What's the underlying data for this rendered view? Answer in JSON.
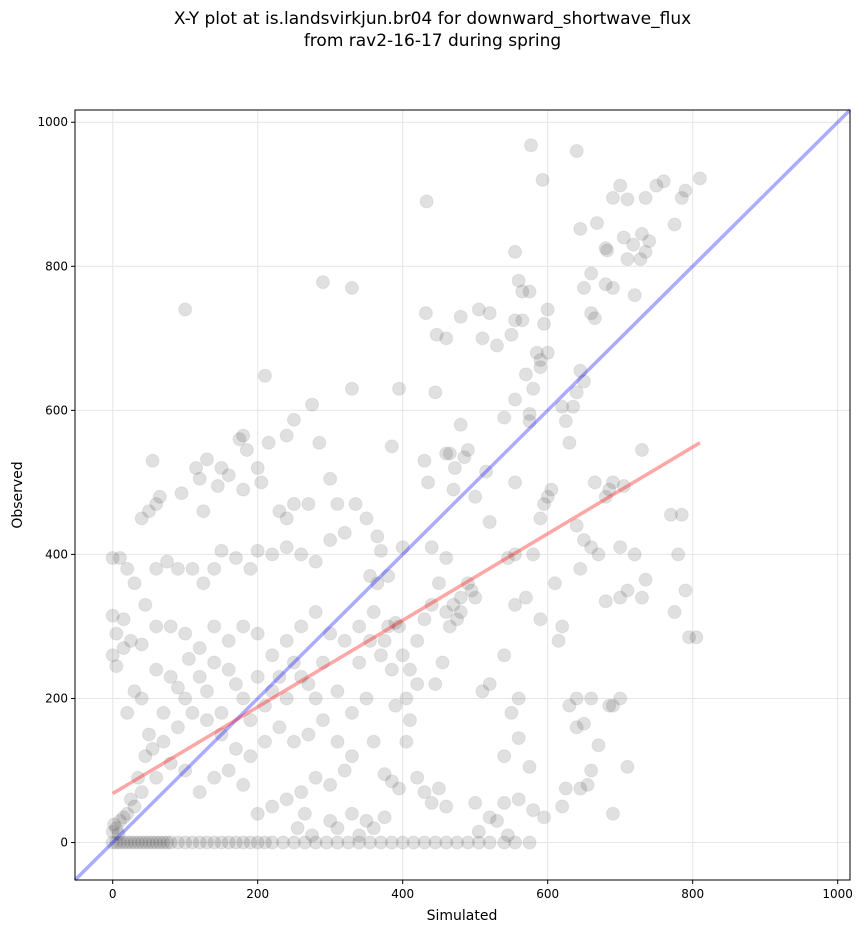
{
  "chart_data": {
    "type": "scatter",
    "title_line1": "X-Y plot at is.landsvirkjun.br04 for downward_shortwave_flux",
    "title_line2": "from rav2-16-17 during spring",
    "xlabel": "Simulated",
    "ylabel": "Observed",
    "xlim": [
      -52,
      1017
    ],
    "ylim": [
      -52,
      1017
    ],
    "xticks": [
      0,
      200,
      400,
      600,
      800,
      1000
    ],
    "yticks": [
      0,
      200,
      400,
      600,
      800,
      1000
    ],
    "grid": true,
    "colors": {
      "points": "#000000",
      "identity_line": "#0000ff",
      "regression_line": "#ff0000"
    },
    "identity_line": {
      "x": [
        -52,
        1017
      ],
      "y": [
        -52,
        1017
      ]
    },
    "regression_line": {
      "x": [
        0,
        810
      ],
      "y": [
        68,
        555
      ]
    },
    "points": [
      [
        577,
        968
      ],
      [
        640,
        960
      ],
      [
        593,
        920
      ],
      [
        433,
        890
      ],
      [
        810,
        922
      ],
      [
        790,
        905
      ],
      [
        785,
        895
      ],
      [
        760,
        918
      ],
      [
        750,
        912
      ],
      [
        735,
        895
      ],
      [
        700,
        912
      ],
      [
        690,
        895
      ],
      [
        710,
        893
      ],
      [
        645,
        852
      ],
      [
        668,
        860
      ],
      [
        680,
        825
      ],
      [
        682,
        822
      ],
      [
        705,
        840
      ],
      [
        718,
        830
      ],
      [
        730,
        845
      ],
      [
        735,
        820
      ],
      [
        728,
        810
      ],
      [
        710,
        810
      ],
      [
        775,
        858
      ],
      [
        740,
        835
      ],
      [
        720,
        760
      ],
      [
        660,
        790
      ],
      [
        650,
        770
      ],
      [
        660,
        735
      ],
      [
        665,
        728
      ],
      [
        680,
        775
      ],
      [
        690,
        770
      ],
      [
        555,
        820
      ],
      [
        560,
        780
      ],
      [
        565,
        765
      ],
      [
        595,
        720
      ],
      [
        600,
        740
      ],
      [
        575,
        765
      ],
      [
        520,
        735
      ],
      [
        480,
        730
      ],
      [
        432,
        735
      ],
      [
        447,
        705
      ],
      [
        460,
        700
      ],
      [
        330,
        770
      ],
      [
        290,
        778
      ],
      [
        100,
        740
      ],
      [
        510,
        700
      ],
      [
        530,
        690
      ],
      [
        555,
        725
      ],
      [
        550,
        705
      ],
      [
        565,
        725
      ],
      [
        585,
        680
      ],
      [
        600,
        680
      ],
      [
        590,
        670
      ],
      [
        555,
        615
      ],
      [
        590,
        660
      ],
      [
        570,
        650
      ],
      [
        580,
        630
      ],
      [
        575,
        595
      ],
      [
        575,
        585
      ],
      [
        620,
        605
      ],
      [
        625,
        585
      ],
      [
        630,
        555
      ],
      [
        640,
        625
      ],
      [
        645,
        655
      ],
      [
        635,
        605
      ],
      [
        650,
        640
      ],
      [
        540,
        590
      ],
      [
        480,
        580
      ],
      [
        490,
        545
      ],
      [
        485,
        535
      ],
      [
        472,
        520
      ],
      [
        470,
        490
      ],
      [
        460,
        540
      ],
      [
        430,
        530
      ],
      [
        465,
        540
      ],
      [
        385,
        550
      ],
      [
        330,
        630
      ],
      [
        395,
        630
      ],
      [
        505,
        740
      ],
      [
        445,
        625
      ],
      [
        435,
        500
      ],
      [
        440,
        410
      ],
      [
        460,
        395
      ],
      [
        515,
        515
      ],
      [
        500,
        480
      ],
      [
        520,
        445
      ],
      [
        545,
        395
      ],
      [
        555,
        400
      ],
      [
        555,
        500
      ],
      [
        600,
        480
      ],
      [
        605,
        490
      ],
      [
        595,
        470
      ],
      [
        590,
        450
      ],
      [
        640,
        440
      ],
      [
        650,
        420
      ],
      [
        645,
        380
      ],
      [
        660,
        410
      ],
      [
        665,
        500
      ],
      [
        685,
        490
      ],
      [
        680,
        480
      ],
      [
        690,
        500
      ],
      [
        705,
        495
      ],
      [
        700,
        410
      ],
      [
        700,
        340
      ],
      [
        710,
        350
      ],
      [
        720,
        400
      ],
      [
        730,
        340
      ],
      [
        735,
        365
      ],
      [
        730,
        545
      ],
      [
        770,
        455
      ],
      [
        785,
        455
      ],
      [
        780,
        400
      ],
      [
        790,
        350
      ],
      [
        795,
        285
      ],
      [
        805,
        285
      ],
      [
        775,
        320
      ],
      [
        670,
        400
      ],
      [
        680,
        335
      ],
      [
        690,
        190
      ],
      [
        685,
        190
      ],
      [
        670,
        135
      ],
      [
        660,
        200
      ],
      [
        650,
        165
      ],
      [
        640,
        160
      ],
      [
        630,
        190
      ],
      [
        640,
        200
      ],
      [
        625,
        75
      ],
      [
        645,
        75
      ],
      [
        655,
        80
      ],
      [
        660,
        100
      ],
      [
        690,
        40
      ],
      [
        710,
        105
      ],
      [
        700,
        200
      ],
      [
        575,
        105
      ],
      [
        560,
        145
      ],
      [
        540,
        120
      ],
      [
        520,
        220
      ],
      [
        510,
        210
      ],
      [
        495,
        350
      ],
      [
        480,
        320
      ],
      [
        475,
        310
      ],
      [
        465,
        300
      ],
      [
        455,
        250
      ],
      [
        445,
        220
      ],
      [
        420,
        220
      ],
      [
        410,
        240
      ],
      [
        400,
        260
      ],
      [
        395,
        300
      ],
      [
        390,
        305
      ],
      [
        375,
        280
      ],
      [
        355,
        280
      ],
      [
        350,
        200
      ],
      [
        360,
        140
      ],
      [
        375,
        95
      ],
      [
        375,
        35
      ],
      [
        385,
        85
      ],
      [
        395,
        75
      ],
      [
        405,
        140
      ],
      [
        405,
        200
      ],
      [
        420,
        90
      ],
      [
        430,
        70
      ],
      [
        440,
        55
      ],
      [
        450,
        75
      ],
      [
        460,
        50
      ],
      [
        500,
        55
      ],
      [
        520,
        35
      ],
      [
        540,
        55
      ],
      [
        560,
        60
      ],
      [
        580,
        45
      ],
      [
        595,
        35
      ],
      [
        620,
        50
      ],
      [
        540,
        260
      ],
      [
        555,
        330
      ],
      [
        570,
        340
      ],
      [
        590,
        310
      ],
      [
        580,
        400
      ],
      [
        610,
        360
      ],
      [
        615,
        280
      ],
      [
        620,
        300
      ],
      [
        550,
        180
      ],
      [
        560,
        200
      ],
      [
        530,
        30
      ],
      [
        545,
        10
      ],
      [
        505,
        15
      ],
      [
        210,
        648
      ],
      [
        240,
        565
      ],
      [
        250,
        587
      ],
      [
        275,
        608
      ],
      [
        285,
        555
      ],
      [
        180,
        565
      ],
      [
        175,
        560
      ],
      [
        185,
        545
      ],
      [
        200,
        520
      ],
      [
        150,
        520
      ],
      [
        130,
        532
      ],
      [
        55,
        530
      ],
      [
        65,
        480
      ],
      [
        40,
        450
      ],
      [
        50,
        460
      ],
      [
        60,
        470
      ],
      [
        95,
        485
      ],
      [
        115,
        520
      ],
      [
        120,
        505
      ],
      [
        125,
        460
      ],
      [
        145,
        495
      ],
      [
        160,
        510
      ],
      [
        180,
        490
      ],
      [
        205,
        500
      ],
      [
        215,
        555
      ],
      [
        230,
        460
      ],
      [
        250,
        470
      ],
      [
        240,
        450
      ],
      [
        270,
        470
      ],
      [
        300,
        505
      ],
      [
        310,
        470
      ],
      [
        320,
        430
      ],
      [
        335,
        470
      ],
      [
        350,
        450
      ],
      [
        365,
        425
      ],
      [
        370,
        405
      ],
      [
        380,
        370
      ],
      [
        400,
        410
      ],
      [
        300,
        420
      ],
      [
        280,
        390
      ],
      [
        260,
        400
      ],
      [
        240,
        410
      ],
      [
        220,
        400
      ],
      [
        200,
        405
      ],
      [
        190,
        380
      ],
      [
        170,
        395
      ],
      [
        150,
        405
      ],
      [
        140,
        380
      ],
      [
        125,
        360
      ],
      [
        110,
        380
      ],
      [
        90,
        380
      ],
      [
        75,
        390
      ],
      [
        60,
        380
      ],
      [
        45,
        330
      ],
      [
        30,
        360
      ],
      [
        20,
        380
      ],
      [
        10,
        395
      ],
      [
        0,
        395
      ],
      [
        0,
        315
      ],
      [
        5,
        290
      ],
      [
        15,
        310
      ],
      [
        25,
        280
      ],
      [
        0,
        260
      ],
      [
        5,
        245
      ],
      [
        15,
        270
      ],
      [
        40,
        275
      ],
      [
        60,
        300
      ],
      [
        80,
        300
      ],
      [
        100,
        290
      ],
      [
        120,
        270
      ],
      [
        140,
        300
      ],
      [
        160,
        280
      ],
      [
        180,
        300
      ],
      [
        200,
        290
      ],
      [
        220,
        260
      ],
      [
        240,
        280
      ],
      [
        260,
        300
      ],
      [
        280,
        320
      ],
      [
        300,
        290
      ],
      [
        320,
        280
      ],
      [
        340,
        300
      ],
      [
        360,
        320
      ],
      [
        380,
        300
      ],
      [
        280,
        200
      ],
      [
        260,
        230
      ],
      [
        240,
        200
      ],
      [
        220,
        210
      ],
      [
        200,
        230
      ],
      [
        180,
        200
      ],
      [
        160,
        240
      ],
      [
        140,
        250
      ],
      [
        120,
        230
      ],
      [
        100,
        200
      ],
      [
        80,
        230
      ],
      [
        60,
        240
      ],
      [
        40,
        200
      ],
      [
        30,
        210
      ],
      [
        20,
        180
      ],
      [
        50,
        150
      ],
      [
        70,
        140
      ],
      [
        90,
        160
      ],
      [
        110,
        180
      ],
      [
        130,
        170
      ],
      [
        150,
        150
      ],
      [
        170,
        130
      ],
      [
        190,
        120
      ],
      [
        210,
        140
      ],
      [
        230,
        160
      ],
      [
        250,
        140
      ],
      [
        270,
        150
      ],
      [
        290,
        170
      ],
      [
        310,
        140
      ],
      [
        330,
        120
      ],
      [
        300,
        80
      ],
      [
        320,
        100
      ],
      [
        280,
        90
      ],
      [
        260,
        70
      ],
      [
        240,
        60
      ],
      [
        220,
        50
      ],
      [
        200,
        40
      ],
      [
        180,
        80
      ],
      [
        160,
        100
      ],
      [
        140,
        90
      ],
      [
        120,
        70
      ],
      [
        100,
        100
      ],
      [
        80,
        110
      ],
      [
        60,
        90
      ],
      [
        40,
        70
      ],
      [
        30,
        50
      ],
      [
        20,
        40
      ],
      [
        10,
        30
      ],
      [
        5,
        20
      ],
      [
        0,
        15
      ],
      [
        2,
        25
      ],
      [
        8,
        12
      ],
      [
        15,
        35
      ],
      [
        25,
        60
      ],
      [
        35,
        90
      ],
      [
        45,
        120
      ],
      [
        55,
        130
      ],
      [
        70,
        180
      ],
      [
        90,
        215
      ],
      [
        105,
        255
      ],
      [
        130,
        210
      ],
      [
        150,
        180
      ],
      [
        170,
        220
      ],
      [
        190,
        170
      ],
      [
        210,
        190
      ],
      [
        230,
        230
      ],
      [
        250,
        250
      ],
      [
        270,
        220
      ],
      [
        290,
        250
      ],
      [
        310,
        210
      ],
      [
        330,
        180
      ],
      [
        340,
        250
      ],
      [
        355,
        370
      ],
      [
        365,
        360
      ],
      [
        370,
        260
      ],
      [
        385,
        240
      ],
      [
        390,
        190
      ],
      [
        410,
        170
      ],
      [
        420,
        280
      ],
      [
        430,
        310
      ],
      [
        440,
        330
      ],
      [
        450,
        360
      ],
      [
        460,
        320
      ],
      [
        470,
        330
      ],
      [
        480,
        340
      ],
      [
        490,
        360
      ],
      [
        500,
        340
      ],
      [
        255,
        20
      ],
      [
        265,
        40
      ],
      [
        275,
        10
      ],
      [
        300,
        30
      ],
      [
        310,
        20
      ],
      [
        330,
        40
      ],
      [
        340,
        10
      ],
      [
        350,
        30
      ],
      [
        360,
        20
      ],
      [
        0,
        0
      ],
      [
        5,
        0
      ],
      [
        10,
        0
      ],
      [
        15,
        0
      ],
      [
        20,
        0
      ],
      [
        25,
        0
      ],
      [
        30,
        0
      ],
      [
        35,
        0
      ],
      [
        40,
        0
      ],
      [
        45,
        0
      ],
      [
        50,
        0
      ],
      [
        55,
        0
      ],
      [
        60,
        0
      ],
      [
        65,
        0
      ],
      [
        70,
        0
      ],
      [
        75,
        0
      ],
      [
        80,
        0
      ],
      [
        90,
        0
      ],
      [
        100,
        0
      ],
      [
        110,
        0
      ],
      [
        120,
        0
      ],
      [
        130,
        0
      ],
      [
        140,
        0
      ],
      [
        150,
        0
      ],
      [
        160,
        0
      ],
      [
        170,
        0
      ],
      [
        180,
        0
      ],
      [
        190,
        0
      ],
      [
        200,
        0
      ],
      [
        210,
        0
      ],
      [
        220,
        0
      ],
      [
        235,
        0
      ],
      [
        250,
        0
      ],
      [
        265,
        0
      ],
      [
        280,
        0
      ],
      [
        295,
        0
      ],
      [
        310,
        0
      ],
      [
        325,
        0
      ],
      [
        340,
        0
      ],
      [
        355,
        0
      ],
      [
        370,
        0
      ],
      [
        385,
        0
      ],
      [
        400,
        0
      ],
      [
        415,
        0
      ],
      [
        430,
        0
      ],
      [
        445,
        0
      ],
      [
        460,
        0
      ],
      [
        475,
        0
      ],
      [
        490,
        0
      ],
      [
        505,
        0
      ],
      [
        520,
        0
      ],
      [
        540,
        0
      ],
      [
        555,
        0
      ],
      [
        575,
        0
      ]
    ]
  }
}
